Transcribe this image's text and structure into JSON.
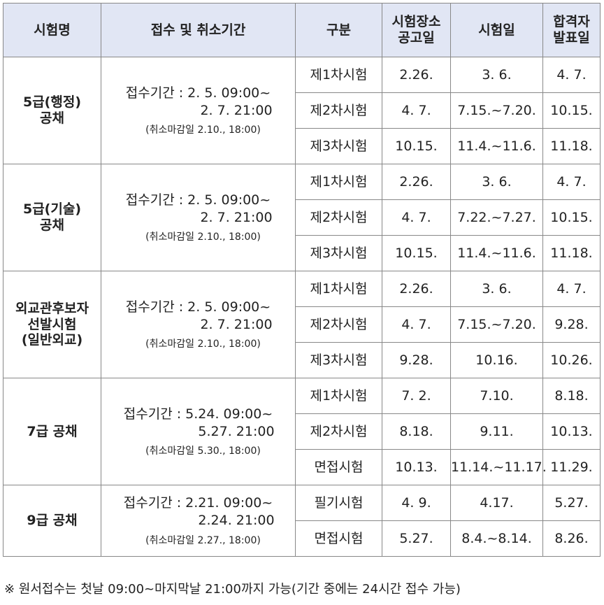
{
  "headers": {
    "exam_name": "시험명",
    "period": "접수 및 취소기간",
    "category": "구분",
    "venue_notice": "시험장소\n공고일",
    "exam_date": "시험일",
    "result_date": "합격자\n발표일"
  },
  "groups": [
    {
      "name": "5급(행정)\n공채",
      "period_line1": "접수기간 : 2. 5. 09:00~",
      "period_line2": "2. 7. 21:00",
      "cancel": "(취소마감일 2.10., 18:00)",
      "rows": [
        {
          "category": "제1차시험",
          "venue": "2.26.",
          "exam": "3. 6.",
          "result": "4. 7."
        },
        {
          "category": "제2차시험",
          "venue": "4. 7.",
          "exam": "7.15.~7.20.",
          "result": "10.15."
        },
        {
          "category": "제3차시험",
          "venue": "10.15.",
          "exam": "11.4.~11.6.",
          "result": "11.18."
        }
      ]
    },
    {
      "name": "5급(기술)\n공채",
      "period_line1": "접수기간 : 2. 5. 09:00~",
      "period_line2": "2. 7. 21:00",
      "cancel": "(취소마감일 2.10., 18:00)",
      "rows": [
        {
          "category": "제1차시험",
          "venue": "2.26.",
          "exam": "3. 6.",
          "result": "4. 7."
        },
        {
          "category": "제2차시험",
          "venue": "4. 7.",
          "exam": "7.22.~7.27.",
          "result": "10.15."
        },
        {
          "category": "제3차시험",
          "venue": "10.15.",
          "exam": "11.4.~11.6.",
          "result": "11.18."
        }
      ]
    },
    {
      "name": "외교관후보자\n선발시험\n(일반외교)",
      "period_line1": "접수기간 : 2. 5. 09:00~",
      "period_line2": "2. 7. 21:00",
      "cancel": "(취소마감일 2.10., 18:00)",
      "rows": [
        {
          "category": "제1차시험",
          "venue": "2.26.",
          "exam": "3. 6.",
          "result": "4. 7."
        },
        {
          "category": "제2차시험",
          "venue": "4. 7.",
          "exam": "7.15.~7.20.",
          "result": "9.28."
        },
        {
          "category": "제3차시험",
          "venue": "9.28.",
          "exam": "10.16.",
          "result": "10.26."
        }
      ]
    },
    {
      "name": "7급 공채",
      "period_line1": "접수기간 : 5.24. 09:00~",
      "period_line2": "5.27. 21:00",
      "cancel": "(취소마감일 5.30., 18:00)",
      "rows": [
        {
          "category": "제1차시험",
          "venue": "7. 2.",
          "exam": "7.10.",
          "result": "8.18."
        },
        {
          "category": "제2차시험",
          "venue": "8.18.",
          "exam": "9.11.",
          "result": "10.13."
        },
        {
          "category": "면접시험",
          "venue": "10.13.",
          "exam": "11.14.~11.17.",
          "result": "11.29."
        }
      ]
    },
    {
      "name": "9급 공채",
      "period_line1": "접수기간 : 2.21. 09:00~",
      "period_line2": "2.24. 21:00",
      "cancel": "(취소마감일 2.27., 18:00)",
      "rows": [
        {
          "category": "필기시험",
          "venue": "4. 9.",
          "exam": "4.17.",
          "result": "5.27."
        },
        {
          "category": "면접시험",
          "venue": "5.27.",
          "exam": "8.4.~8.14.",
          "result": "8.26."
        }
      ]
    }
  ],
  "footnote": "※ 원서접수는 첫날 09:00~마지막날 21:00까지 가능(기간 중에는 24시간 접수 가능)"
}
